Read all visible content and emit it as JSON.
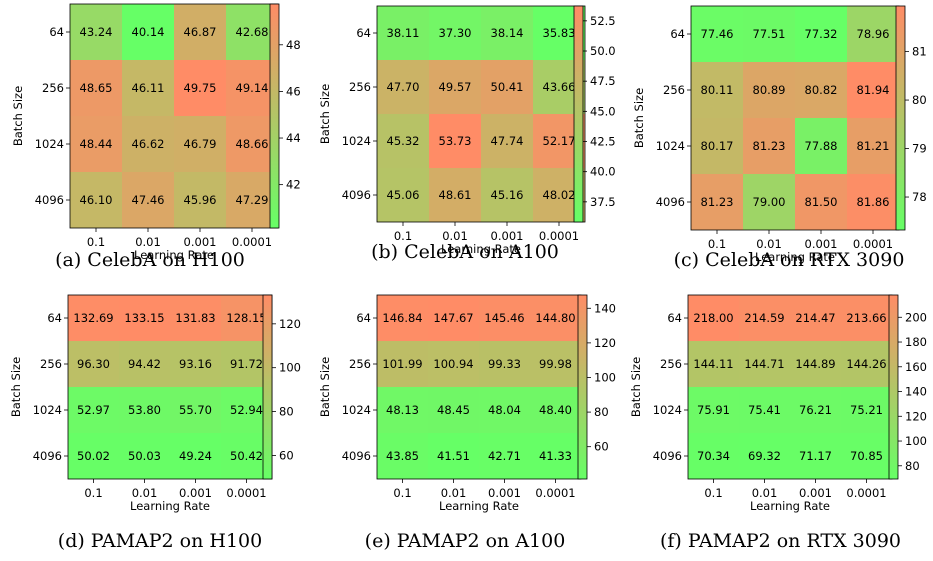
{
  "chart_data": [
    {
      "type": "heatmap",
      "caption": "(a) CelebA on H100",
      "xlabel": "Learning Rate",
      "ylabel": "Batch Size",
      "x_categories": [
        "0.1",
        "0.01",
        "0.001",
        "0.0001"
      ],
      "y_categories": [
        "64",
        "256",
        "1024",
        "4096"
      ],
      "values": [
        [
          43.24,
          40.14,
          46.87,
          42.68
        ],
        [
          48.65,
          46.11,
          49.75,
          49.14
        ],
        [
          48.44,
          46.62,
          46.79,
          48.66
        ],
        [
          46.1,
          47.46,
          45.96,
          47.29
        ]
      ],
      "vmin": 40.14,
      "vmax": 49.75,
      "colorbar_ticks": [
        42,
        44,
        46,
        48
      ],
      "colormap": [
        "#66ff66",
        "#ff8c66"
      ]
    },
    {
      "type": "heatmap",
      "caption": "(b) CelebA on A100",
      "xlabel": "Learning Rate",
      "ylabel": "Batch Size",
      "x_categories": [
        "0.1",
        "0.01",
        "0.001",
        "0.0001"
      ],
      "y_categories": [
        "64",
        "256",
        "1024",
        "4096"
      ],
      "values": [
        [
          38.11,
          37.3,
          38.14,
          35.83
        ],
        [
          47.7,
          49.57,
          50.41,
          43.66
        ],
        [
          45.32,
          53.73,
          47.74,
          52.17
        ],
        [
          45.06,
          48.61,
          45.16,
          48.02
        ]
      ],
      "vmin": 35.83,
      "vmax": 53.73,
      "colorbar_ticks": [
        37.5,
        40.0,
        42.5,
        45.0,
        47.5,
        50.0,
        52.5
      ],
      "colorbar_tick_labels": [
        "37.5",
        "40.0",
        "42.5",
        "45.0",
        "47.5",
        "50.0",
        "52.5"
      ],
      "colormap": [
        "#66ff66",
        "#ff8c66"
      ]
    },
    {
      "type": "heatmap",
      "caption": "(c) CelebA on RTX 3090",
      "xlabel": "Learning Rate",
      "ylabel": "Batch Size",
      "x_categories": [
        "0.1",
        "0.01",
        "0.001",
        "0.0001"
      ],
      "y_categories": [
        "64",
        "256",
        "1024",
        "4096"
      ],
      "values": [
        [
          77.46,
          77.51,
          77.32,
          78.96
        ],
        [
          80.11,
          80.89,
          80.82,
          81.94
        ],
        [
          80.17,
          81.23,
          77.88,
          81.21
        ],
        [
          81.23,
          79.0,
          81.5,
          81.86
        ]
      ],
      "vmin": 77.32,
      "vmax": 81.94,
      "colorbar_ticks": [
        78,
        79,
        80,
        81
      ],
      "colormap": [
        "#66ff66",
        "#ff8c66"
      ]
    },
    {
      "type": "heatmap",
      "caption": "(d) PAMAP2 on H100",
      "xlabel": "Learning Rate",
      "ylabel": "Batch Size",
      "x_categories": [
        "0.1",
        "0.01",
        "0.001",
        "0.0001"
      ],
      "y_categories": [
        "64",
        "256",
        "1024",
        "4096"
      ],
      "values": [
        [
          132.69,
          133.15,
          131.83,
          128.15
        ],
        [
          96.3,
          94.42,
          93.16,
          91.72
        ],
        [
          52.97,
          53.8,
          55.7,
          52.94
        ],
        [
          50.02,
          50.03,
          49.24,
          50.42
        ]
      ],
      "vmin": 49.24,
      "vmax": 133.15,
      "colorbar_ticks": [
        60,
        80,
        100,
        120
      ],
      "colormap": [
        "#66ff66",
        "#ff8c66"
      ]
    },
    {
      "type": "heatmap",
      "caption": "(e) PAMAP2 on A100",
      "xlabel": "Learning Rate",
      "ylabel": "Batch Size",
      "x_categories": [
        "0.1",
        "0.01",
        "0.001",
        "0.0001"
      ],
      "y_categories": [
        "64",
        "256",
        "1024",
        "4096"
      ],
      "values": [
        [
          146.84,
          147.67,
          145.46,
          144.8
        ],
        [
          101.99,
          100.94,
          99.33,
          99.98
        ],
        [
          48.13,
          48.45,
          48.04,
          48.4
        ],
        [
          43.85,
          41.51,
          42.71,
          41.33
        ]
      ],
      "vmin": 41.33,
      "vmax": 147.67,
      "colorbar_ticks": [
        60,
        80,
        100,
        120,
        140
      ],
      "colormap": [
        "#66ff66",
        "#ff8c66"
      ]
    },
    {
      "type": "heatmap",
      "caption": "(f) PAMAP2 on RTX 3090",
      "xlabel": "Learning Rate",
      "ylabel": "Batch Size",
      "x_categories": [
        "0.1",
        "0.01",
        "0.001",
        "0.0001"
      ],
      "y_categories": [
        "64",
        "256",
        "1024",
        "4096"
      ],
      "values": [
        [
          218.0,
          214.59,
          214.47,
          213.66
        ],
        [
          144.11,
          144.71,
          144.89,
          144.26
        ],
        [
          75.91,
          75.41,
          76.21,
          75.21
        ],
        [
          70.34,
          69.32,
          71.17,
          70.85
        ]
      ],
      "vmin": 69.32,
      "vmax": 218.0,
      "colorbar_ticks": [
        80,
        100,
        120,
        140,
        160,
        180,
        200
      ],
      "colormap": [
        "#66ff66",
        "#ff8c66"
      ]
    }
  ]
}
